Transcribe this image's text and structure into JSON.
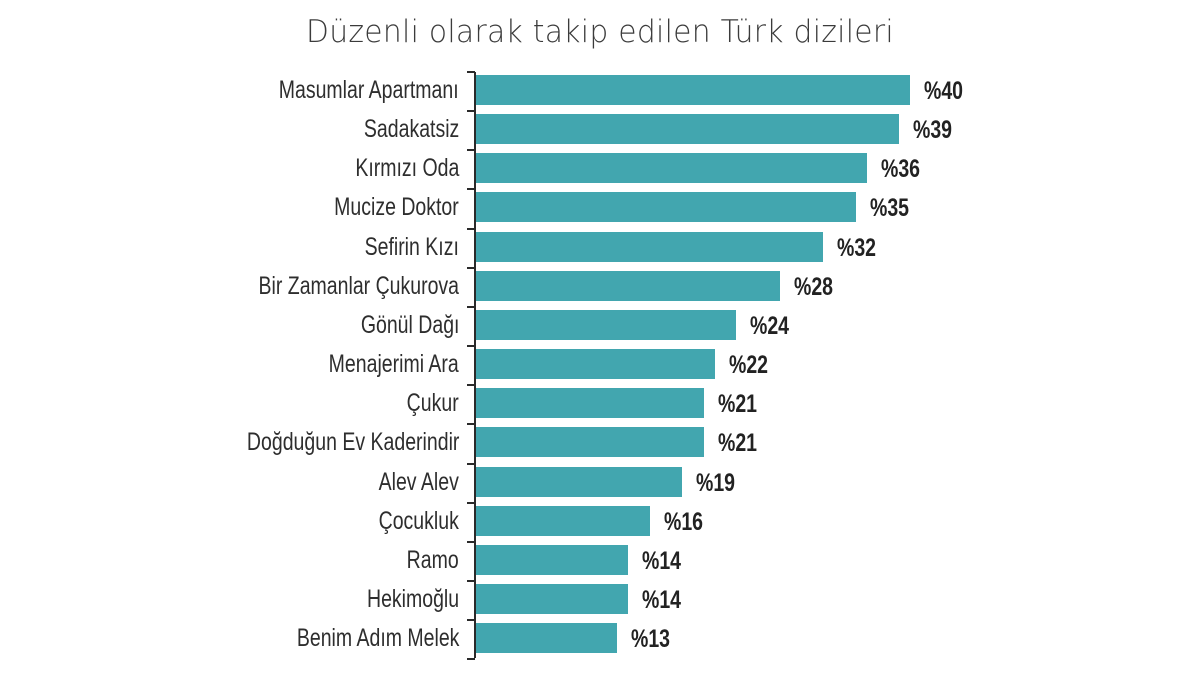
{
  "chart_data": {
    "type": "bar",
    "orientation": "horizontal",
    "title": "Düzenli olarak takip edilen Türk dizileri",
    "xlabel": "",
    "ylabel": "",
    "value_prefix": "%",
    "xlim": [
      0,
      40
    ],
    "grid": false,
    "legend": null,
    "bar_color": "#42a6af",
    "categories": [
      "Masumlar Apartmanı",
      "Sadakatsiz",
      "Kırmızı Oda",
      "Mucize Doktor",
      "Sefirin Kızı",
      "Bir Zamanlar Çukurova",
      "Gönül Dağı",
      "Menajerimi Ara",
      "Çukur",
      "Doğduğun Ev Kaderindir",
      "Alev Alev",
      "Çocukluk",
      "Ramo",
      "Hekimoğlu",
      "Benim Adım Melek"
    ],
    "values": [
      40,
      39,
      36,
      35,
      32,
      28,
      24,
      22,
      21,
      21,
      19,
      16,
      14,
      14,
      13
    ],
    "value_labels": [
      "%40",
      "%39",
      "%36",
      "%35",
      "%32",
      "%28",
      "%24",
      "%22",
      "%21",
      "%21",
      "%19",
      "%16",
      "%14",
      "%14",
      "%13"
    ]
  }
}
